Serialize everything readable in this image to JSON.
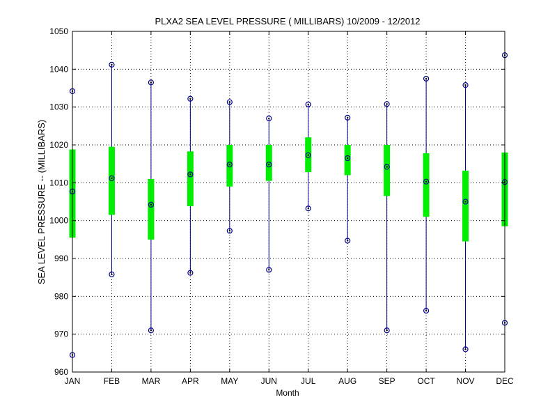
{
  "chart_data": {
    "type": "boxplot",
    "title": "PLXA2  SEA LEVEL PRESSURE ( MILLIBARS) 10/2009 - 12/2012",
    "xlabel": "Month",
    "ylabel": "SEA LEVEL PRESSURE -- (MILLIBARS)",
    "ylim": [
      960,
      1050
    ],
    "yticks": [
      960,
      970,
      980,
      990,
      1000,
      1010,
      1020,
      1030,
      1040,
      1050
    ],
    "grid": true,
    "categories": [
      "JAN",
      "FEB",
      "MAR",
      "APR",
      "MAY",
      "JUN",
      "JUL",
      "AUG",
      "SEP",
      "OCT",
      "NOV",
      "DEC"
    ],
    "series": [
      {
        "min": 964.5,
        "q1": 995.5,
        "median": 1007.7,
        "q3": 1018.8,
        "max": 1034.2
      },
      {
        "min": 985.8,
        "q1": 1001.5,
        "median": 1011.2,
        "q3": 1019.5,
        "max": 1041.2
      },
      {
        "min": 971.0,
        "q1": 995.0,
        "median": 1004.2,
        "q3": 1011.0,
        "max": 1036.5
      },
      {
        "min": 986.2,
        "q1": 1003.8,
        "median": 1012.2,
        "q3": 1018.3,
        "max": 1032.2
      },
      {
        "min": 997.3,
        "q1": 1009.0,
        "median": 1014.8,
        "q3": 1020.0,
        "max": 1031.3
      },
      {
        "min": 987.0,
        "q1": 1010.5,
        "median": 1014.8,
        "q3": 1020.0,
        "max": 1027.0
      },
      {
        "min": 1003.2,
        "q1": 1012.8,
        "median": 1017.3,
        "q3": 1022.0,
        "max": 1030.7
      },
      {
        "min": 994.7,
        "q1": 1012.0,
        "median": 1016.5,
        "q3": 1020.0,
        "max": 1027.2
      },
      {
        "min": 971.0,
        "q1": 1006.5,
        "median": 1014.2,
        "q3": 1020.0,
        "max": 1030.8
      },
      {
        "min": 976.2,
        "q1": 1001.0,
        "median": 1010.3,
        "q3": 1017.8,
        "max": 1037.5
      },
      {
        "min": 966.0,
        "q1": 994.5,
        "median": 1005.0,
        "q3": 1013.2,
        "max": 1035.8
      },
      {
        "min": 973.0,
        "q1": 998.5,
        "median": 1010.2,
        "q3": 1018.0,
        "max": 1043.7
      }
    ],
    "colors": {
      "whisker": "#00008b",
      "box": "#00ee00",
      "marker": "#000000",
      "grid": "#000000",
      "axis": "#000000"
    }
  }
}
